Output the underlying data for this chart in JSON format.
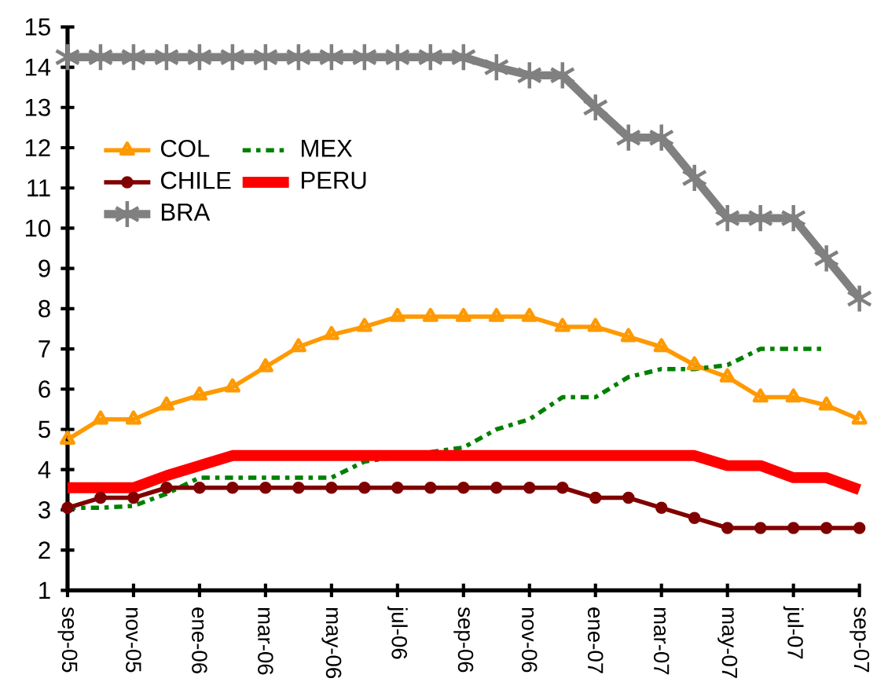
{
  "chart_data": {
    "type": "line",
    "categories": [
      "sep-05",
      null,
      "nov-05",
      null,
      "ene-06",
      null,
      "mar-06",
      null,
      "may-06",
      null,
      "jul-06",
      null,
      "sep-06",
      null,
      "nov-06",
      null,
      "ene-07",
      null,
      "mar-07",
      null,
      "may-07",
      null,
      "jul-07",
      null,
      "sep-07"
    ],
    "series": [
      {
        "name": "COL",
        "color": "#ff9900",
        "marker": "triangle",
        "line_style": "solid",
        "values": [
          4.75,
          5.25,
          5.25,
          5.6,
          5.85,
          6.05,
          6.55,
          7.05,
          7.35,
          7.55,
          7.8,
          7.8,
          7.8,
          7.8,
          7.8,
          7.55,
          7.55,
          7.3,
          7.05,
          6.6,
          6.3,
          5.8,
          5.8,
          5.6,
          5.25
        ]
      },
      {
        "name": "MEX",
        "color": "#008000",
        "marker": "none",
        "line_style": "dashdot",
        "values": [
          3.05,
          3.05,
          3.1,
          3.4,
          3.8,
          3.8,
          3.8,
          3.8,
          3.8,
          4.2,
          null,
          null,
          4.55,
          5.0,
          5.25,
          5.8,
          5.8,
          6.3,
          6.5,
          6.5,
          6.6,
          7.0,
          7.0,
          7.0,
          null
        ]
      },
      {
        "name": "CHILE",
        "color": "#800000",
        "marker": "circle",
        "line_style": "solid",
        "values": [
          3.05,
          3.3,
          3.3,
          3.55,
          3.55,
          3.55,
          3.55,
          3.55,
          3.55,
          3.55,
          3.55,
          3.55,
          3.55,
          3.55,
          3.55,
          3.55,
          3.3,
          3.3,
          3.05,
          2.8,
          2.55,
          2.55,
          2.55,
          2.55,
          2.55
        ]
      },
      {
        "name": "PERU",
        "color": "#ff0000",
        "marker": "none",
        "line_style": "solid",
        "values": [
          3.55,
          3.55,
          3.55,
          3.85,
          4.1,
          4.35,
          4.35,
          4.35,
          4.35,
          4.35,
          4.35,
          4.35,
          4.35,
          4.35,
          4.35,
          4.35,
          4.35,
          4.35,
          4.35,
          4.35,
          4.1,
          4.1,
          3.8,
          3.8,
          3.5
        ]
      },
      {
        "name": "BRA",
        "color": "#808080",
        "marker": "cross",
        "line_style": "solid",
        "values": [
          14.25,
          14.25,
          14.25,
          14.25,
          14.25,
          14.25,
          14.25,
          14.25,
          14.25,
          14.25,
          14.25,
          14.25,
          14.25,
          14.0,
          13.8,
          13.8,
          13.0,
          12.25,
          12.25,
          11.25,
          10.25,
          10.25,
          10.25,
          9.25,
          8.25
        ]
      }
    ],
    "ylim": [
      1,
      15
    ],
    "yticks": [
      1,
      2,
      3,
      4,
      5,
      6,
      7,
      8,
      9,
      10,
      11,
      12,
      13,
      14,
      15
    ],
    "grid": false,
    "legend": "top left"
  }
}
